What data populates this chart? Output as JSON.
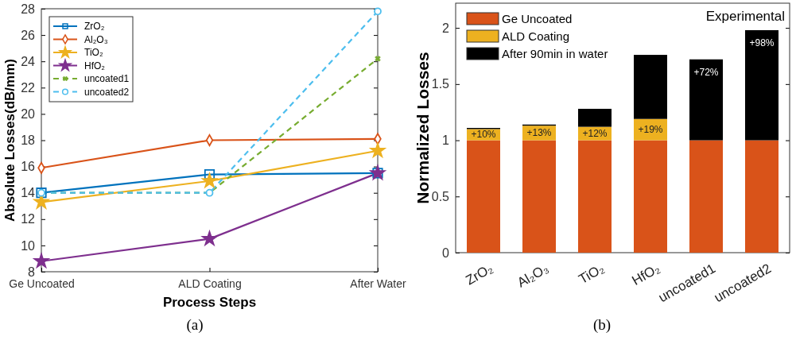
{
  "chart_data": [
    {
      "type": "line",
      "xlabel": "Process Steps",
      "ylabel": "Absolute Losses(dB/mm)",
      "categories": [
        "Ge Uncoated",
        "ALD Coating",
        "After Water"
      ],
      "ylim": [
        8,
        28
      ],
      "yticks": [
        8,
        10,
        12,
        14,
        16,
        18,
        20,
        22,
        24,
        26,
        28
      ],
      "legend": "top left",
      "grid": false,
      "annotations": [
        "(a)"
      ],
      "series": [
        {
          "name": "ZrO₂",
          "color": "#0072bd",
          "marker": "square",
          "line_style": "solid",
          "values": [
            14,
            15.4,
            15.5
          ]
        },
        {
          "name": "Al₂O₃",
          "color": "#d95319",
          "marker": "diamond",
          "line_style": "solid",
          "values": [
            15.9,
            18,
            18.1
          ]
        },
        {
          "name": "TiO₂",
          "color": "#edb120",
          "marker": "star",
          "line_style": "solid",
          "values": [
            13.3,
            14.9,
            17.2
          ]
        },
        {
          "name": "HfO₂",
          "color": "#7e2f8e",
          "marker": "star",
          "line_style": "solid",
          "values": [
            8.8,
            10.5,
            15.5
          ]
        },
        {
          "name": "uncoated1",
          "color": "#77ac30",
          "marker": "cross",
          "line_style": "dashed",
          "values": [
            14,
            14,
            24.2
          ]
        },
        {
          "name": "uncoated2",
          "color": "#4dbeee",
          "marker": "circle",
          "line_style": "dashed",
          "values": [
            14,
            14,
            27.8
          ]
        }
      ]
    },
    {
      "type": "bar",
      "stacked": true,
      "ylabel": "Normalized Losses",
      "categories": [
        "ZrO₂",
        "Al₂O₃",
        "TiO₂",
        "HfO₂",
        "uncoated1",
        "uncoated2"
      ],
      "ylim": [
        0,
        2.22
      ],
      "yticks": [
        0,
        0.5,
        1,
        1.5,
        2
      ],
      "legend": "top left",
      "grid": false,
      "annotations": [
        "Experimental",
        "(b)"
      ],
      "series": [
        {
          "name": "Ge Uncoated",
          "color": "#d95319",
          "values": [
            1,
            1,
            1,
            1,
            1,
            1
          ]
        },
        {
          "name": "ALD Coating",
          "color": "#edb120",
          "values": [
            0.1,
            0.13,
            0.12,
            0.19,
            0,
            0
          ],
          "value_labels": [
            "+10%",
            "+13%",
            "+12%",
            "+19%",
            null,
            null
          ]
        },
        {
          "name": "After 90min in water",
          "color": "#000000",
          "values": [
            0.01,
            0.01,
            0.16,
            0.57,
            0.72,
            0.98
          ],
          "value_labels": [
            null,
            null,
            null,
            null,
            "+72%",
            "+98%"
          ]
        }
      ]
    }
  ]
}
